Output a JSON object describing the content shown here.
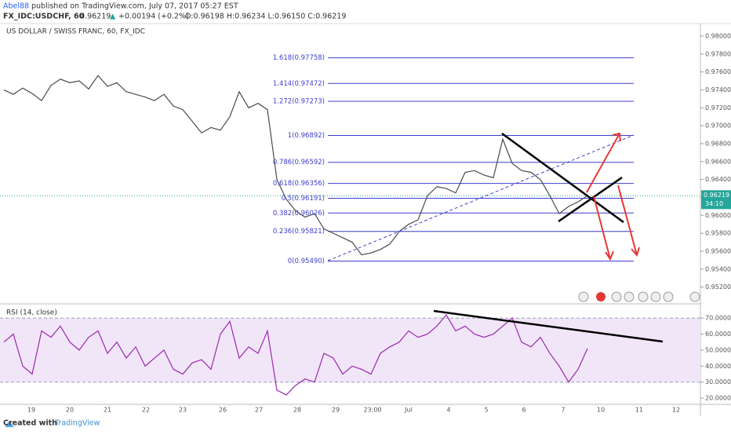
{
  "header": {
    "user": "Abel88",
    "published": "published on TradingView.com, July 07, 2017 05:27 EST",
    "symbol": "FX_IDC:USDCHF, 60",
    "last": "0.96219",
    "arrow": "▲",
    "change": "+0.00194 (+0.2%)",
    "ohlc": "O:0.96198 H:0.96234 L:0.96150 C:0.96219"
  },
  "chart_data": [
    {
      "type": "line",
      "title": "US DOLLAR / SWISS FRANC, 60, FX_IDC",
      "color": "#4a4a4a",
      "values": [
        0.974,
        0.9735,
        0.9742,
        0.9736,
        0.9728,
        0.9745,
        0.9752,
        0.9748,
        0.975,
        0.9741,
        0.9756,
        0.9744,
        0.9748,
        0.9738,
        0.9735,
        0.9732,
        0.9728,
        0.9735,
        0.9722,
        0.9718,
        0.9705,
        0.9692,
        0.9698,
        0.9695,
        0.971,
        0.9738,
        0.972,
        0.9725,
        0.9718,
        0.964,
        0.9618,
        0.9605,
        0.9598,
        0.9602,
        0.9585,
        0.958,
        0.9575,
        0.957,
        0.9556,
        0.9558,
        0.9562,
        0.9568,
        0.9582,
        0.959,
        0.9595,
        0.9622,
        0.9632,
        0.963,
        0.9625,
        0.9648,
        0.965,
        0.9645,
        0.9642,
        0.9685,
        0.9658,
        0.965,
        0.9648,
        0.964,
        0.9622,
        0.9602,
        0.961,
        0.9615,
        0.9622
      ],
      "ylim": [
        0.9503,
        0.9814
      ],
      "yticks": [
        {
          "value": 0.98,
          "label": "0.98000"
        },
        {
          "value": 0.978,
          "label": "0.97800"
        },
        {
          "value": 0.976,
          "label": "0.97600"
        },
        {
          "value": 0.974,
          "label": "0.97400"
        },
        {
          "value": 0.972,
          "label": "0.97200"
        },
        {
          "value": 0.97,
          "label": "0.97000"
        },
        {
          "value": 0.968,
          "label": "0.96800"
        },
        {
          "value": 0.966,
          "label": "0.96600"
        },
        {
          "value": 0.964,
          "label": "0.96400"
        },
        {
          "value": 0.962,
          "label": "0.96200"
        },
        {
          "value": 0.96,
          "label": "0.96000"
        },
        {
          "value": 0.958,
          "label": "0.95800"
        },
        {
          "value": 0.956,
          "label": "0.95600"
        },
        {
          "value": 0.954,
          "label": "0.95400"
        },
        {
          "value": 0.952,
          "label": "0.95200"
        }
      ],
      "levels": [
        {
          "value": 0.97758,
          "label": "1.618(0.97758)"
        },
        {
          "value": 0.97472,
          "label": "1.414(0.97472)"
        },
        {
          "value": 0.97273,
          "label": "1.272(0.97273)"
        },
        {
          "value": 0.96892,
          "label": "1(0.96892)"
        },
        {
          "value": 0.96592,
          "label": "0.786(0.96592)"
        },
        {
          "value": 0.96356,
          "label": "0.618(0.96356)"
        },
        {
          "value": 0.96191,
          "label": "0.5(0.96191)"
        },
        {
          "value": 0.96026,
          "label": "0.382(0.96026)"
        },
        {
          "value": 0.95821,
          "label": "0.236(0.95821)"
        },
        {
          "value": 0.9549,
          "label": "0(0.95490)"
        }
      ],
      "last_price": {
        "value": 0.96219,
        "label": "0.96219"
      },
      "countdown": "34:10"
    },
    {
      "type": "line",
      "title": "RSI (14, close)",
      "color": "#9c27b0",
      "values": [
        55,
        60,
        40,
        35,
        62,
        58,
        65,
        55,
        50,
        58,
        62,
        48,
        55,
        45,
        52,
        40,
        45,
        50,
        38,
        35,
        42,
        44,
        38,
        60,
        68,
        45,
        52,
        48,
        62,
        25,
        22,
        28,
        32,
        30,
        48,
        45,
        35,
        40,
        38,
        35,
        48,
        52,
        55,
        62,
        58,
        60,
        65,
        72,
        62,
        65,
        60,
        58,
        60,
        65,
        70,
        55,
        52,
        58,
        48,
        40,
        30,
        38,
        51
      ],
      "ylim": [
        16.1,
        77.4
      ],
      "yticks": [
        {
          "value": 70,
          "label": "70.0000"
        },
        {
          "value": 60,
          "label": "60.0000"
        },
        {
          "value": 50,
          "label": "50.0000"
        },
        {
          "value": 40,
          "label": "40.0000"
        },
        {
          "value": 30,
          "label": "30.0000"
        },
        {
          "value": 20,
          "label": "20.0000"
        }
      ],
      "band": [
        30,
        70
      ],
      "x_labels": [
        "19",
        "20",
        "21",
        "22",
        "23",
        "26",
        "27",
        "28",
        "29",
        "23:00",
        "Jul",
        "4",
        "5",
        "6",
        "7",
        "10",
        "11",
        "12"
      ]
    }
  ],
  "footer": {
    "created": "Created with",
    "brand": "TradingView"
  }
}
